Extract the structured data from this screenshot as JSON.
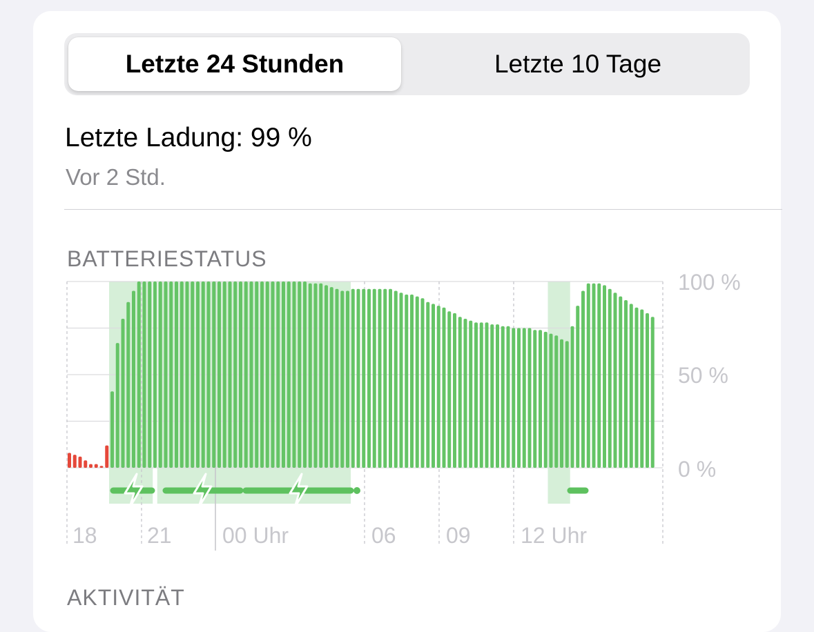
{
  "tabs": {
    "selected": "Letzte 24 Stunden",
    "other": "Letzte 10 Tage"
  },
  "last_charge": {
    "title": "Letzte Ladung: 99 %",
    "subtitle": "Vor 2 Std."
  },
  "battery_section": {
    "title": "BATTERIESTATUS"
  },
  "activity_section": {
    "title": "AKTIVITÄT"
  },
  "colors": {
    "battery_bar": "#65c466",
    "low_battery_bar": "#e5483a",
    "charging_background": "#d6efd8",
    "charging_indicator": "#5ec15f"
  },
  "chart_data": {
    "type": "bar",
    "title": "BATTERIESTATUS",
    "x_tick_labels": [
      "18",
      "21",
      "00 Uhr",
      "06",
      "09",
      "12 Uhr"
    ],
    "y_tick_labels": [
      "100 %",
      "50 %",
      "0 %"
    ],
    "ylim": [
      0,
      100
    ],
    "grid": true,
    "series": [
      {
        "values": [
          8,
          7,
          6,
          4,
          2,
          2,
          1,
          12,
          41,
          67,
          80,
          89,
          95,
          100,
          100,
          100,
          100,
          100,
          100,
          100,
          100,
          100,
          100,
          100,
          100,
          100,
          100,
          100,
          100,
          100,
          100,
          100,
          100,
          100,
          100,
          100,
          100,
          100,
          100,
          100,
          100,
          100,
          100,
          100,
          100,
          99,
          99,
          99,
          98,
          97,
          96,
          95,
          95,
          96,
          96,
          96,
          96,
          96,
          96,
          96,
          96,
          95,
          94,
          93,
          93,
          92,
          91,
          89,
          88,
          87,
          86,
          84,
          83,
          81,
          80,
          79,
          78,
          78,
          78,
          77,
          77,
          76,
          76,
          75,
          75,
          75,
          75,
          74,
          74,
          73,
          72,
          71,
          69,
          68,
          76,
          87,
          95,
          99,
          99,
          99,
          98,
          96,
          94,
          92,
          90,
          88,
          86,
          85,
          83,
          81
        ]
      }
    ],
    "low_battery_bar_count": 8,
    "charging_period_bar_ranges": [
      [
        8,
        15
      ],
      [
        17,
        52
      ],
      [
        90,
        93
      ]
    ],
    "charging_indicator_count": 3
  }
}
